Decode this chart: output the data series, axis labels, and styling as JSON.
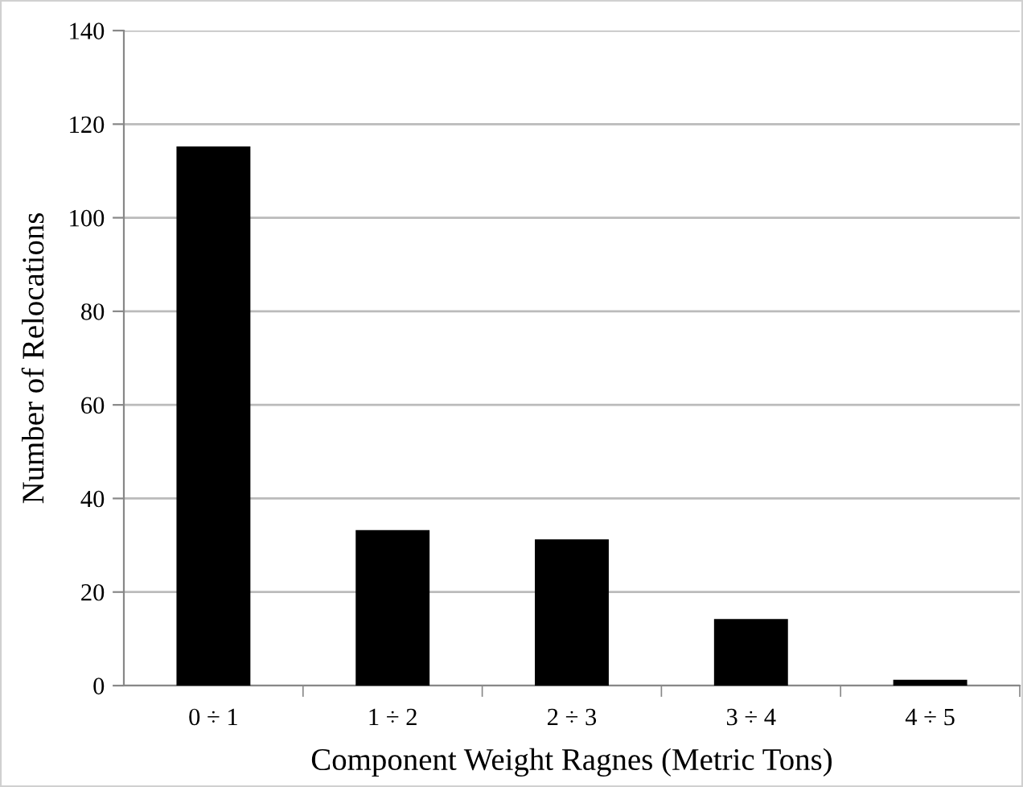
{
  "chart_data": {
    "type": "bar",
    "xlabel": "Component Weight Ragnes (Metric Tons)",
    "ylabel": "Number of Relocations",
    "categories": [
      "0 ÷ 1",
      "1 ÷ 2",
      "2 ÷ 3",
      "3 ÷ 4",
      "4 ÷ 5"
    ],
    "values": [
      115,
      33,
      31,
      14,
      1
    ],
    "color": "#000000",
    "ylim": [
      0,
      140
    ],
    "yticks": [
      0,
      20,
      40,
      60,
      80,
      100,
      120,
      140
    ],
    "grid": "y"
  }
}
